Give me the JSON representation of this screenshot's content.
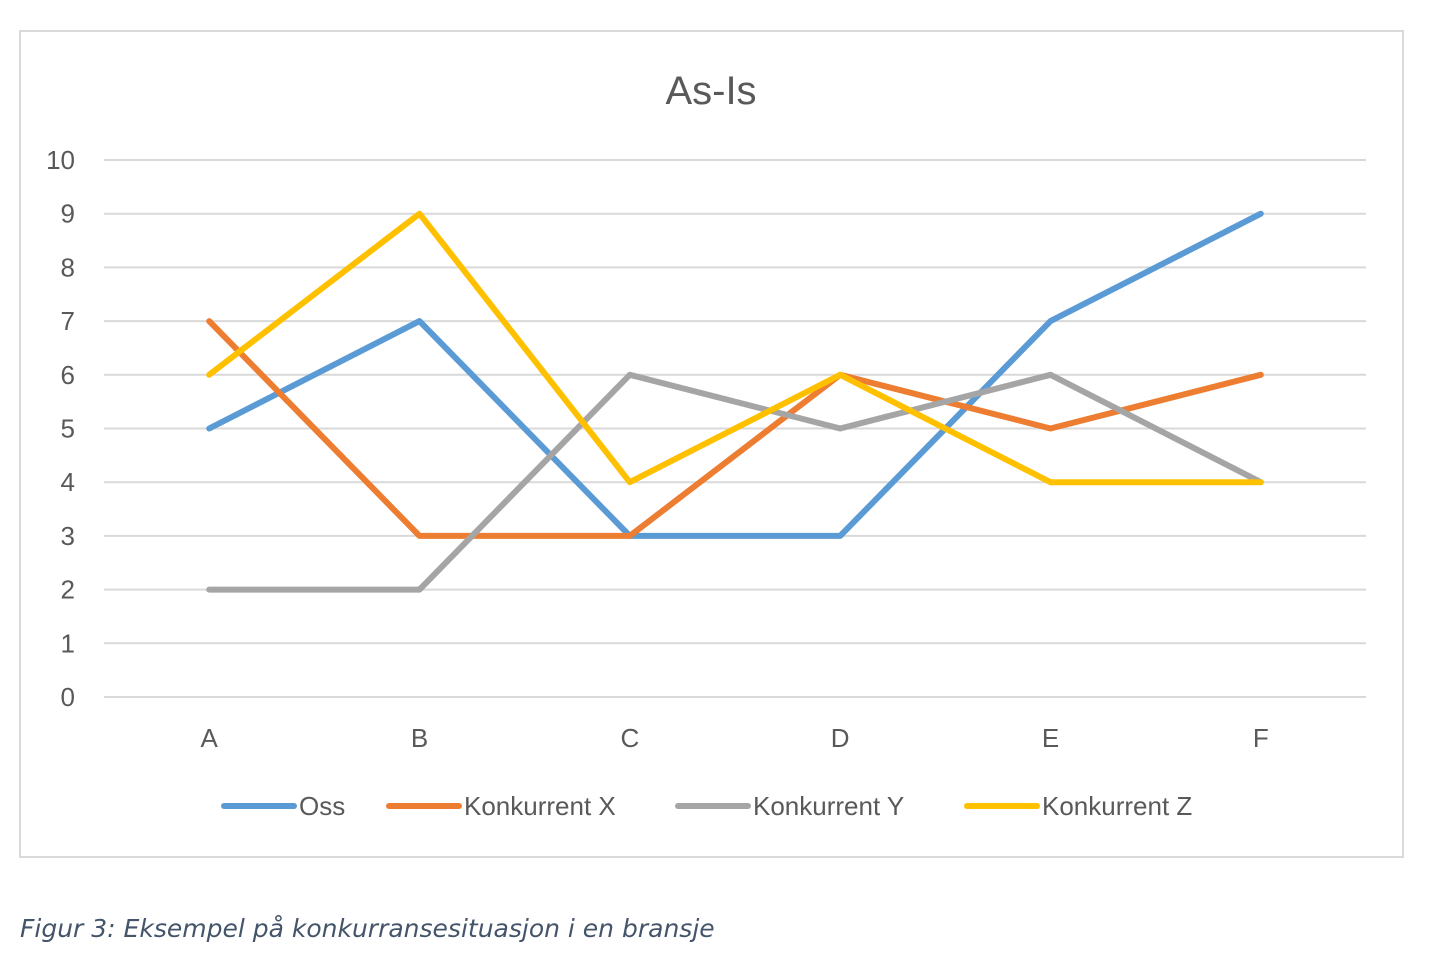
{
  "chart_data": {
    "type": "line",
    "title": "As-Is",
    "categories": [
      "A",
      "B",
      "C",
      "D",
      "E",
      "F"
    ],
    "ylim": [
      0,
      10
    ],
    "yticks": [
      0,
      1,
      2,
      3,
      4,
      5,
      6,
      7,
      8,
      9,
      10
    ],
    "grid": true,
    "legend": "bottom",
    "series": [
      {
        "name": "Oss",
        "color": "#5b9bd5",
        "values": [
          5,
          7,
          3,
          3,
          7,
          9
        ]
      },
      {
        "name": "Konkurrent X",
        "color": "#ed7d31",
        "values": [
          7,
          3,
          3,
          6,
          5,
          6
        ]
      },
      {
        "name": "Konkurrent Y",
        "color": "#a5a5a5",
        "values": [
          2,
          2,
          6,
          5,
          6,
          4
        ]
      },
      {
        "name": "Konkurrent Z",
        "color": "#ffc000",
        "values": [
          6,
          9,
          4,
          6,
          4,
          4
        ]
      }
    ]
  },
  "caption": "Figur 3: Eksempel på konkurransesituasjon i en bransje"
}
